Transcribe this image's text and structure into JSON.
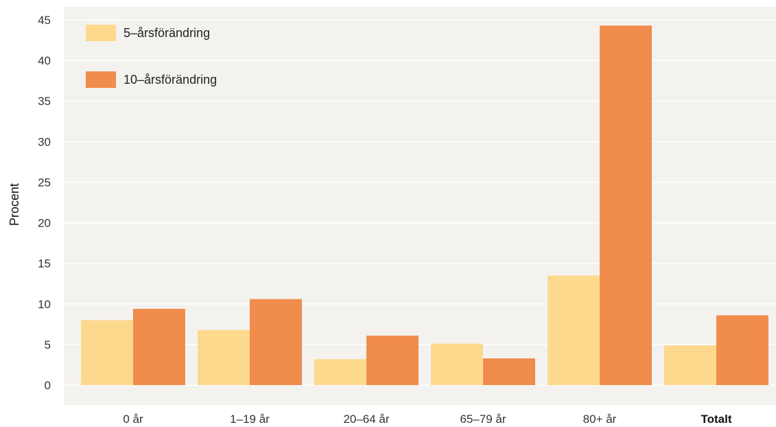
{
  "chart_data": {
    "type": "bar",
    "categories": [
      "0 år",
      "1–19 år",
      "20–64 år",
      "65–79 år",
      "80+ år",
      "Totalt"
    ],
    "bold_categories": [
      "Totalt"
    ],
    "series": [
      {
        "name": "5–årsförändring",
        "color": "#fdd98e",
        "values": [
          8.0,
          6.8,
          3.2,
          5.1,
          13.5,
          4.9
        ]
      },
      {
        "name": "10–årsförändring",
        "color": "#f08c4c",
        "values": [
          9.4,
          10.6,
          6.1,
          3.3,
          44.3,
          8.6
        ]
      }
    ],
    "ylabel": "Procent",
    "ylim": [
      0,
      45
    ],
    "yticks": [
      0,
      5,
      10,
      15,
      20,
      25,
      30,
      35,
      40,
      45
    ],
    "grid": true,
    "legend_position": "top-left",
    "colors": {
      "plot_background": "#f4f2ef",
      "gridline": "#ffffff"
    }
  }
}
